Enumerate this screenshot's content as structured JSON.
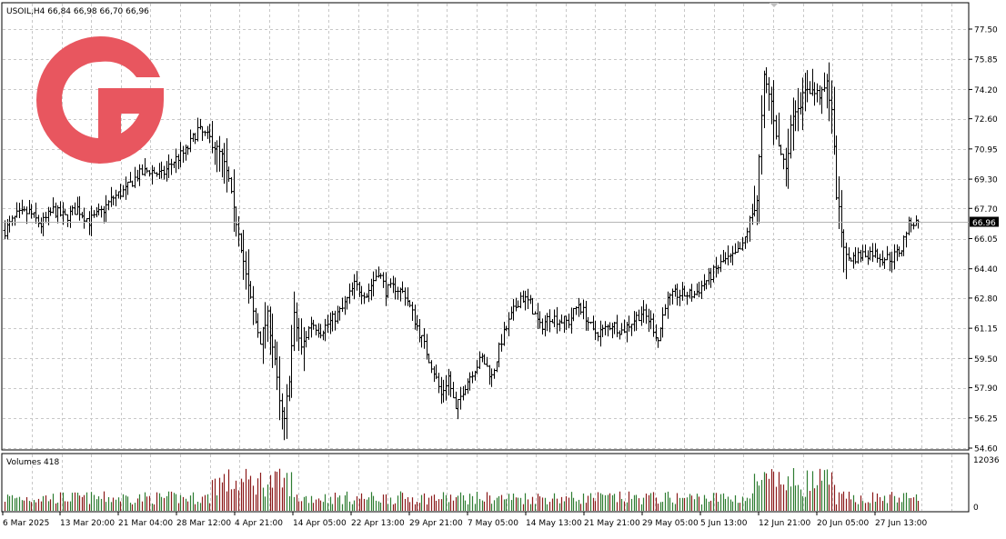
{
  "window": {
    "header_text": "USOIL,H4  66,84 66,98 66,70 66,96",
    "volumes_label": "Volumes 418"
  },
  "logo": {
    "name": "broker-logo",
    "color": "#e8565f"
  },
  "colors": {
    "candle": "#000000",
    "grid": "#c8c8c8",
    "volume_up": "#2e7d32",
    "volume_down": "#8b1a1a",
    "current_price_line": "#b0b0b0",
    "current_price_tag_bg": "#000000",
    "current_price_tag_text": "#ffffff"
  },
  "chart_data": {
    "type": "bar",
    "symbol": "USOIL",
    "timeframe": "H4",
    "price_axis": {
      "ticks": [
        "77.50",
        "75.85",
        "74.20",
        "72.60",
        "70.95",
        "69.30",
        "67.70",
        "66.05",
        "64.40",
        "62.80",
        "61.15",
        "59.50",
        "57.90",
        "56.25",
        "54.60"
      ],
      "range": [
        54.3,
        77.9
      ]
    },
    "current_price": "66.96",
    "time_axis": {
      "labels": [
        "6 Mar 2025",
        "13 Mar 20:00",
        "21 Mar 04:00",
        "28 Mar 12:00",
        "4 Apr 21:00",
        "14 Apr 05:00",
        "22 Apr 13:00",
        "29 Apr 21:00",
        "7 May 05:00",
        "14 May 13:00",
        "21 May 21:00",
        "29 May 05:00",
        "5 Jun 13:00",
        "12 Jun 21:00",
        "20 Jun 05:00",
        "27 Jun 13:00"
      ]
    },
    "price_path": [
      [
        0,
        66.5
      ],
      [
        5,
        67.3
      ],
      [
        10,
        67.5
      ],
      [
        15,
        66.8
      ],
      [
        20,
        67.6
      ],
      [
        25,
        67.2
      ],
      [
        30,
        67.7
      ],
      [
        35,
        67.0
      ],
      [
        40,
        67.5
      ],
      [
        45,
        68.3
      ],
      [
        50,
        68.7
      ],
      [
        55,
        69.5
      ],
      [
        60,
        69.8
      ],
      [
        65,
        69.5
      ],
      [
        70,
        70.3
      ],
      [
        75,
        70.8
      ],
      [
        80,
        72.0
      ],
      [
        85,
        71.5
      ],
      [
        90,
        70.5
      ],
      [
        93,
        69.2
      ],
      [
        95,
        67.5
      ],
      [
        97,
        66.5
      ],
      [
        100,
        64.0
      ],
      [
        103,
        62.0
      ],
      [
        106,
        60.5
      ],
      [
        109,
        61.8
      ],
      [
        112,
        59.5
      ],
      [
        114,
        57.0
      ],
      [
        116,
        56.0
      ],
      [
        118,
        58.5
      ],
      [
        120,
        61.8
      ],
      [
        123,
        60.0
      ],
      [
        127,
        61.5
      ],
      [
        131,
        61.0
      ],
      [
        135,
        61.5
      ],
      [
        140,
        62.2
      ],
      [
        145,
        63.5
      ],
      [
        150,
        63.0
      ],
      [
        155,
        64.3
      ],
      [
        158,
        63.2
      ],
      [
        162,
        63.4
      ],
      [
        166,
        63.0
      ],
      [
        170,
        61.6
      ],
      [
        174,
        60.2
      ],
      [
        178,
        58.8
      ],
      [
        181,
        57.5
      ],
      [
        184,
        58.5
      ],
      [
        187,
        56.6
      ],
      [
        190,
        57.8
      ],
      [
        194,
        58.8
      ],
      [
        198,
        59.5
      ],
      [
        202,
        58.5
      ],
      [
        206,
        60.5
      ],
      [
        210,
        61.8
      ],
      [
        214,
        62.9
      ],
      [
        218,
        62.5
      ],
      [
        222,
        61.2
      ],
      [
        226,
        61.8
      ],
      [
        230,
        61.6
      ],
      [
        234,
        61.5
      ],
      [
        238,
        62.5
      ],
      [
        241,
        61.8
      ],
      [
        244,
        60.9
      ],
      [
        248,
        61.0
      ],
      [
        252,
        61.4
      ],
      [
        256,
        61.0
      ],
      [
        260,
        61.5
      ],
      [
        264,
        62.0
      ],
      [
        268,
        61.5
      ],
      [
        271,
        60.5
      ],
      [
        274,
        62.5
      ],
      [
        278,
        63.0
      ],
      [
        282,
        63.0
      ],
      [
        286,
        63.0
      ],
      [
        290,
        63.6
      ],
      [
        294,
        64.2
      ],
      [
        298,
        64.8
      ],
      [
        302,
        65.0
      ],
      [
        306,
        65.6
      ],
      [
        309,
        67.0
      ],
      [
        312,
        68.2
      ],
      [
        315,
        74.8
      ],
      [
        318,
        73.5
      ],
      [
        321,
        71.0
      ],
      [
        324,
        70.0
      ],
      [
        327,
        73.0
      ],
      [
        330,
        73.5
      ],
      [
        333,
        74.3
      ],
      [
        336,
        74.0
      ],
      [
        339,
        73.9
      ],
      [
        341,
        74.5
      ],
      [
        343,
        73.2
      ],
      [
        345,
        68.5
      ],
      [
        347,
        66.5
      ],
      [
        349,
        65.0
      ],
      [
        352,
        65.0
      ],
      [
        356,
        65.2
      ],
      [
        360,
        65.3
      ],
      [
        364,
        65.0
      ],
      [
        368,
        65.0
      ],
      [
        372,
        65.5
      ],
      [
        374,
        66.5
      ],
      [
        376,
        67.0
      ],
      [
        379,
        66.8
      ]
    ],
    "volume_axis": {
      "ticks": [
        "12036",
        "0"
      ],
      "max": 12036
    }
  }
}
